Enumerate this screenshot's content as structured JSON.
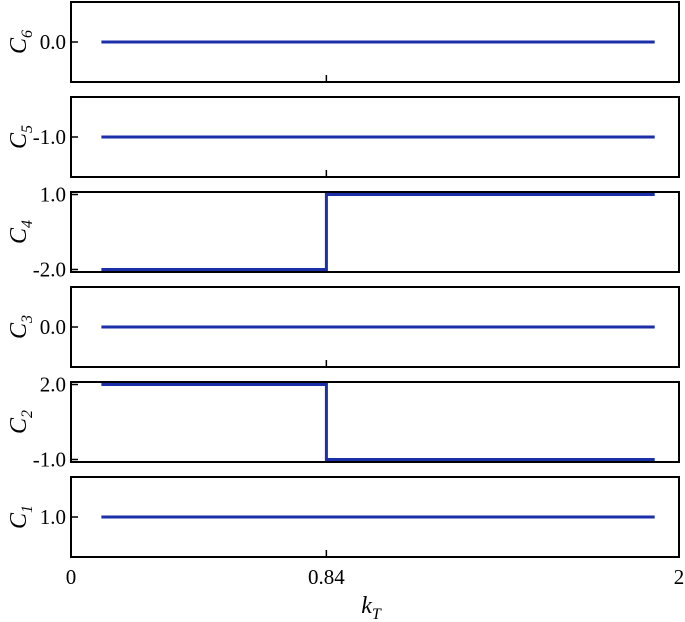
{
  "chart_data": {
    "type": "line",
    "xlabel": "k",
    "xlabel_subscript": "T",
    "x_range": [
      0,
      2
    ],
    "x_ticks": [
      {
        "value": 0,
        "label": "0"
      },
      {
        "value": 0.84,
        "label": "0.84"
      },
      {
        "value": 2,
        "label": "2"
      }
    ],
    "line_color": "#1a2fa8",
    "frame_color": "#000000",
    "grid": false,
    "panels": [
      {
        "ylabel": "C",
        "ylabel_subscript": "6",
        "ylim": [
          -1,
          1
        ],
        "y_ticks": [
          {
            "value": 0.0,
            "label": "0.0"
          }
        ],
        "series": [
          {
            "x": [
              0.1,
              1.92
            ],
            "y": [
              0.0,
              0.0
            ]
          }
        ]
      },
      {
        "ylabel": "C",
        "ylabel_subscript": "5",
        "ylim": [
          -2,
          0
        ],
        "y_ticks": [
          {
            "value": -1.0,
            "label": "-1.0"
          }
        ],
        "series": [
          {
            "x": [
              0.1,
              1.92
            ],
            "y": [
              -1.0,
              -1.0
            ]
          }
        ]
      },
      {
        "ylabel": "C",
        "ylabel_subscript": "4",
        "ylim": [
          -2.1,
          1.1
        ],
        "y_ticks": [
          {
            "value": 1.0,
            "label": "1.0"
          },
          {
            "value": -2.0,
            "label": "-2.0"
          }
        ],
        "series": [
          {
            "x": [
              0.1,
              0.84,
              0.84,
              1.92
            ],
            "y": [
              -2.0,
              -2.0,
              1.0,
              1.0
            ]
          }
        ]
      },
      {
        "ylabel": "C",
        "ylabel_subscript": "3",
        "ylim": [
          -1,
          1
        ],
        "y_ticks": [
          {
            "value": 0.0,
            "label": "0.0"
          }
        ],
        "series": [
          {
            "x": [
              0.1,
              1.92
            ],
            "y": [
              0.0,
              0.0
            ]
          }
        ]
      },
      {
        "ylabel": "C",
        "ylabel_subscript": "2",
        "ylim": [
          -1.1,
          2.1
        ],
        "y_ticks": [
          {
            "value": 2.0,
            "label": "2.0"
          },
          {
            "value": -1.0,
            "label": "-1.0"
          }
        ],
        "series": [
          {
            "x": [
              0.1,
              0.84,
              0.84,
              1.92
            ],
            "y": [
              2.0,
              2.0,
              -1.0,
              -1.0
            ]
          }
        ]
      },
      {
        "ylabel": "C",
        "ylabel_subscript": "1",
        "ylim": [
          0,
          2
        ],
        "y_ticks": [
          {
            "value": 1.0,
            "label": "1.0"
          }
        ],
        "series": [
          {
            "x": [
              0.1,
              1.92
            ],
            "y": [
              1.0,
              1.0
            ]
          }
        ]
      }
    ]
  }
}
